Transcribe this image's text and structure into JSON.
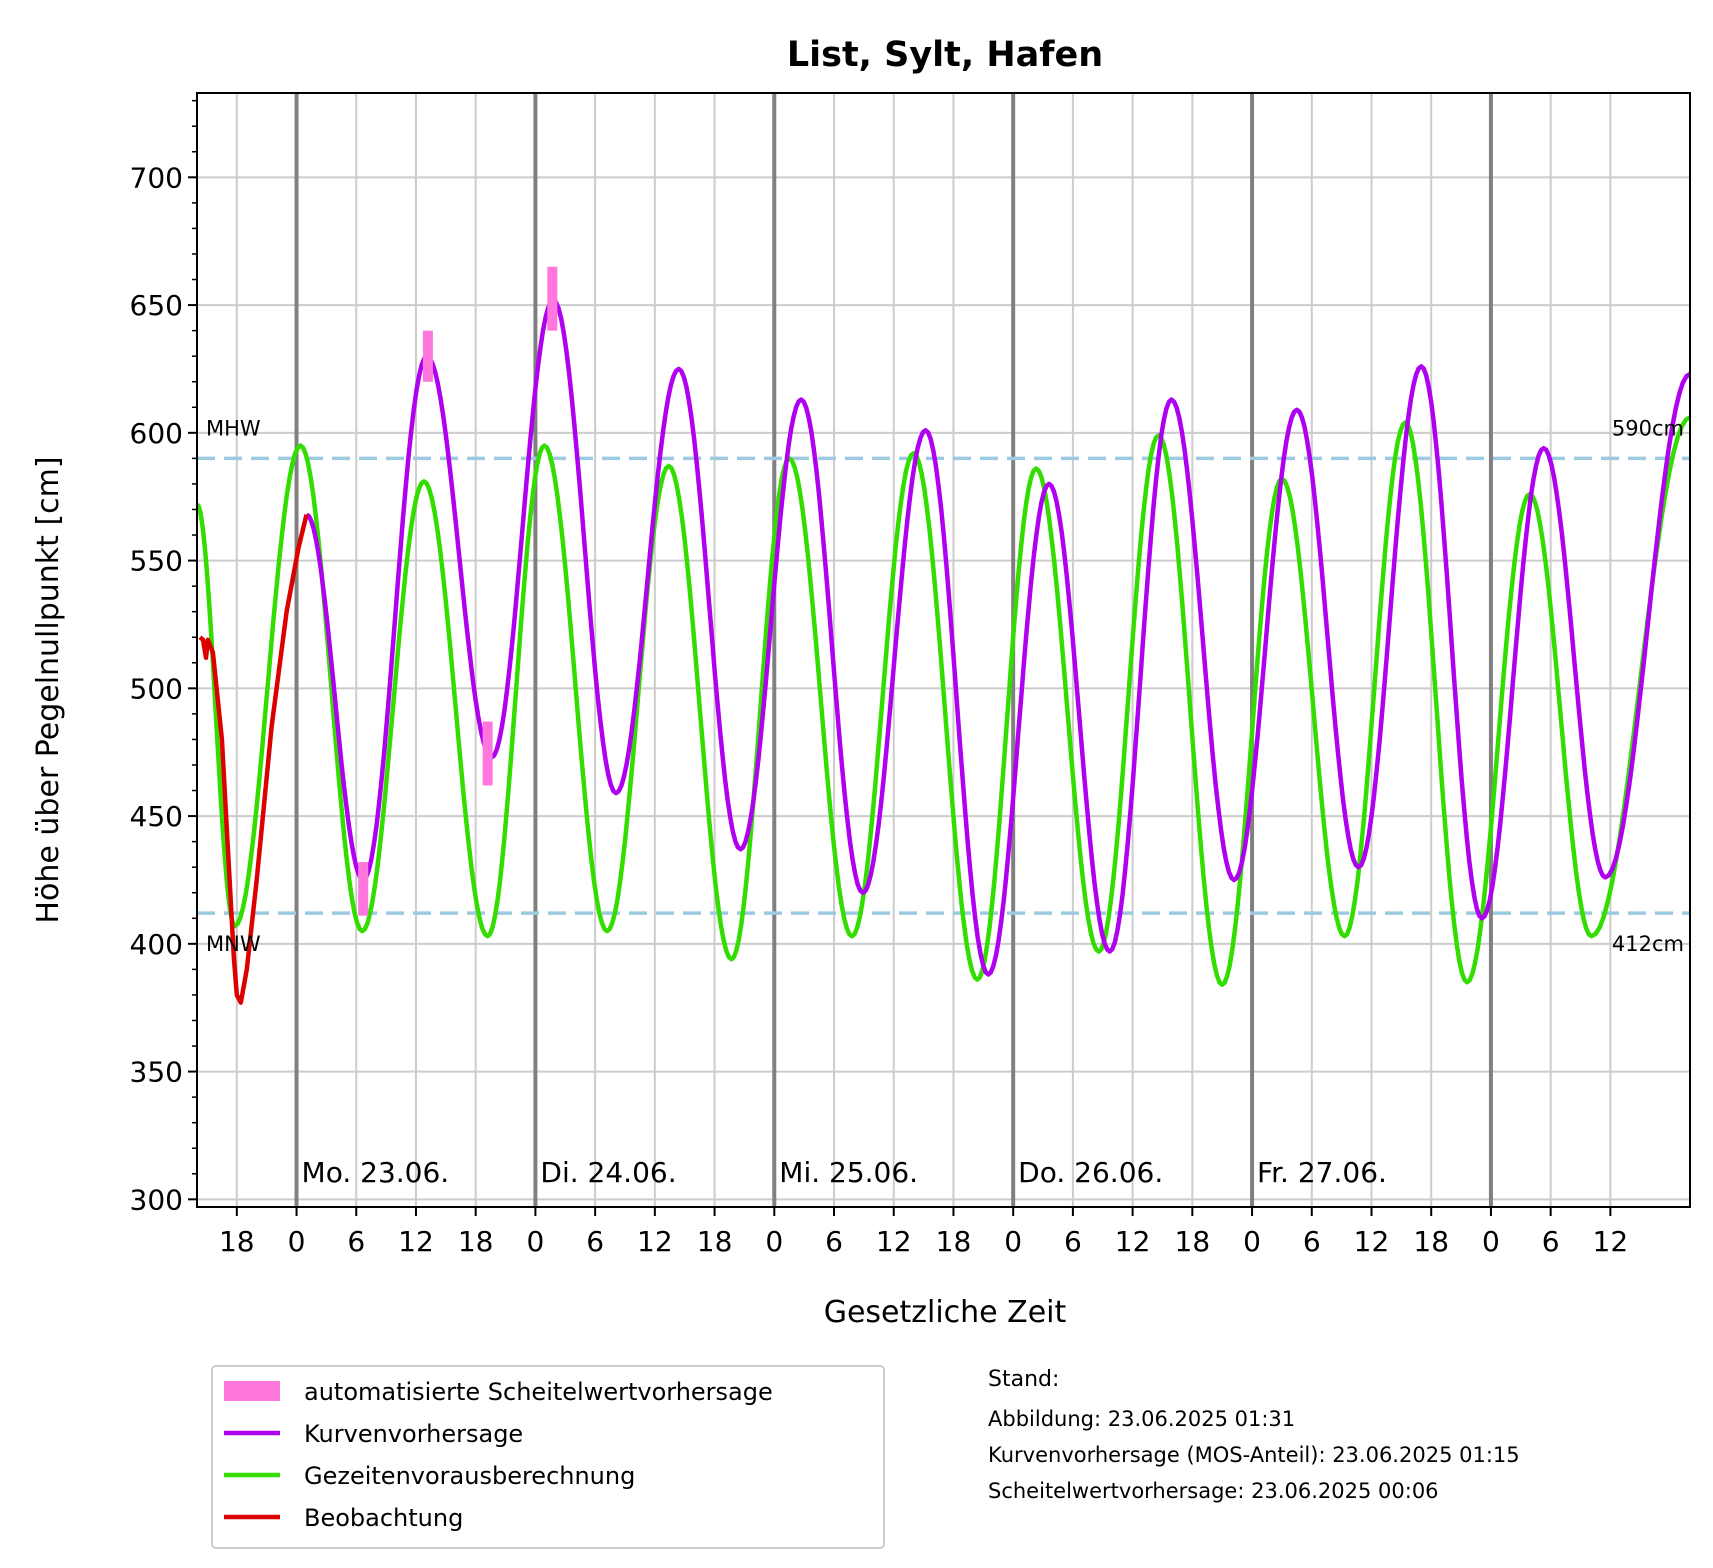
{
  "chart_data": {
    "type": "line",
    "title": "List, Sylt, Hafen",
    "xlabel": "Gesetzliche Zeit",
    "ylabel": "Höhe über Pegelnullpunkt [cm]",
    "x_unit": "hours relative to Mo. 23.06. 00:00",
    "xlim": [
      -10,
      140
    ],
    "ylim": [
      297,
      733
    ],
    "yticks": [
      300,
      350,
      400,
      450,
      500,
      550,
      600,
      650,
      700
    ],
    "yminor_step": 10,
    "xticks": [
      {
        "x": -6,
        "label": "18"
      },
      {
        "x": 0,
        "label": "0"
      },
      {
        "x": 6,
        "label": "6"
      },
      {
        "x": 12,
        "label": "12"
      },
      {
        "x": 18,
        "label": "18"
      },
      {
        "x": 24,
        "label": "0"
      },
      {
        "x": 30,
        "label": "6"
      },
      {
        "x": 36,
        "label": "12"
      },
      {
        "x": 42,
        "label": "18"
      },
      {
        "x": 48,
        "label": "0"
      },
      {
        "x": 54,
        "label": "6"
      },
      {
        "x": 60,
        "label": "12"
      },
      {
        "x": 66,
        "label": "18"
      },
      {
        "x": 72,
        "label": "0"
      },
      {
        "x": 78,
        "label": "6"
      },
      {
        "x": 84,
        "label": "12"
      },
      {
        "x": 90,
        "label": "18"
      },
      {
        "x": 96,
        "label": "0"
      },
      {
        "x": 102,
        "label": "6"
      },
      {
        "x": 108,
        "label": "12"
      },
      {
        "x": 114,
        "label": "18"
      },
      {
        "x": 120,
        "label": "0"
      },
      {
        "x": 126,
        "label": "6"
      },
      {
        "x": 132,
        "label": "12"
      }
    ],
    "day_lines": [
      0,
      24,
      48,
      72,
      96,
      120
    ],
    "day_labels": [
      {
        "x": 0,
        "label": "Mo. 23.06."
      },
      {
        "x": 24,
        "label": "Di. 24.06."
      },
      {
        "x": 48,
        "label": "Mi. 25.06."
      },
      {
        "x": 72,
        "label": "Do. 26.06."
      },
      {
        "x": 96,
        "label": "Fr. 27.06."
      }
    ],
    "reference_lines": [
      {
        "name": "MHW",
        "value": 590,
        "value_label": "590cm",
        "color": "#9ecae1"
      },
      {
        "name": "MNW",
        "value": 412,
        "value_label": "412cm",
        "color": "#9ecae1"
      }
    ],
    "grid": true,
    "series": [
      {
        "name": "Gezeitenvorausberechnung",
        "color": "#33dd00",
        "points": [
          [
            -10,
            572
          ],
          [
            -6.2,
            407
          ],
          [
            0.4,
            595
          ],
          [
            6.6,
            405
          ],
          [
            12.8,
            581
          ],
          [
            19.2,
            403
          ],
          [
            24.9,
            595
          ],
          [
            31.2,
            405
          ],
          [
            37.4,
            587
          ],
          [
            43.7,
            394
          ],
          [
            49.5,
            590
          ],
          [
            55.8,
            403
          ],
          [
            62.0,
            592
          ],
          [
            68.4,
            386
          ],
          [
            74.3,
            586
          ],
          [
            80.6,
            397
          ],
          [
            86.6,
            599
          ],
          [
            93.0,
            384
          ],
          [
            99.0,
            582
          ],
          [
            105.3,
            403
          ],
          [
            111.4,
            604
          ],
          [
            117.6,
            385
          ],
          [
            123.9,
            576
          ],
          [
            130.1,
            403
          ],
          [
            140,
            606
          ]
        ]
      },
      {
        "name": "Kurvenvorhersage",
        "color": "#b000f0",
        "points": [
          [
            1.0,
            568
          ],
          [
            6.7,
            425
          ],
          [
            13.1,
            630
          ],
          [
            19.6,
            473
          ],
          [
            25.8,
            652
          ],
          [
            32.1,
            459
          ],
          [
            38.4,
            625
          ],
          [
            44.6,
            437
          ],
          [
            50.7,
            613
          ],
          [
            56.9,
            420
          ],
          [
            63.2,
            601
          ],
          [
            69.5,
            388
          ],
          [
            75.6,
            580
          ],
          [
            81.7,
            397
          ],
          [
            87.9,
            613
          ],
          [
            94.2,
            425
          ],
          [
            100.5,
            609
          ],
          [
            106.7,
            430
          ],
          [
            113.0,
            626
          ],
          [
            119.1,
            410
          ],
          [
            125.3,
            594
          ],
          [
            131.5,
            426
          ],
          [
            140,
            623
          ]
        ]
      },
      {
        "name": "Beobachtung",
        "color": "#dd0000",
        "points": [
          [
            -9.7,
            520
          ],
          [
            -9.4,
            519
          ],
          [
            -9.1,
            512
          ],
          [
            -8.9,
            519
          ],
          [
            -8.4,
            514
          ],
          [
            -7.5,
            480
          ],
          [
            -6.8,
            430
          ],
          [
            -6.3,
            395
          ],
          [
            -6.0,
            380
          ],
          [
            -5.6,
            377
          ],
          [
            -5.0,
            390
          ],
          [
            -4.0,
            425
          ],
          [
            -2.5,
            485
          ],
          [
            -1.0,
            530
          ],
          [
            0.2,
            555
          ],
          [
            1.0,
            568
          ]
        ]
      }
    ],
    "crest_forecasts": {
      "name": "automatisierte Scheitelwertvorhersage",
      "color": "#ff77dd",
      "ranges": [
        {
          "x": 6.7,
          "low": 411,
          "high": 432
        },
        {
          "x": 13.2,
          "low": 620,
          "high": 640
        },
        {
          "x": 19.2,
          "low": 462,
          "high": 487
        },
        {
          "x": 25.7,
          "low": 640,
          "high": 665
        }
      ]
    }
  },
  "legend": {
    "items": [
      {
        "label": "automatisierte Scheitelwertvorhersage",
        "color": "#ff77dd",
        "kind": "patch"
      },
      {
        "label": "Kurvenvorhersage",
        "color": "#b000f0",
        "kind": "line"
      },
      {
        "label": "Gezeitenvorausberechnung",
        "color": "#33dd00",
        "kind": "line"
      },
      {
        "label": "Beobachtung",
        "color": "#dd0000",
        "kind": "line"
      }
    ]
  },
  "stand": {
    "heading": "Stand:",
    "lines": [
      "Abbildung: 23.06.2025 01:31",
      "Kurvenvorhersage (MOS-Anteil): 23.06.2025 01:15",
      "Scheitelwertvorhersage: 23.06.2025 00:06"
    ]
  }
}
